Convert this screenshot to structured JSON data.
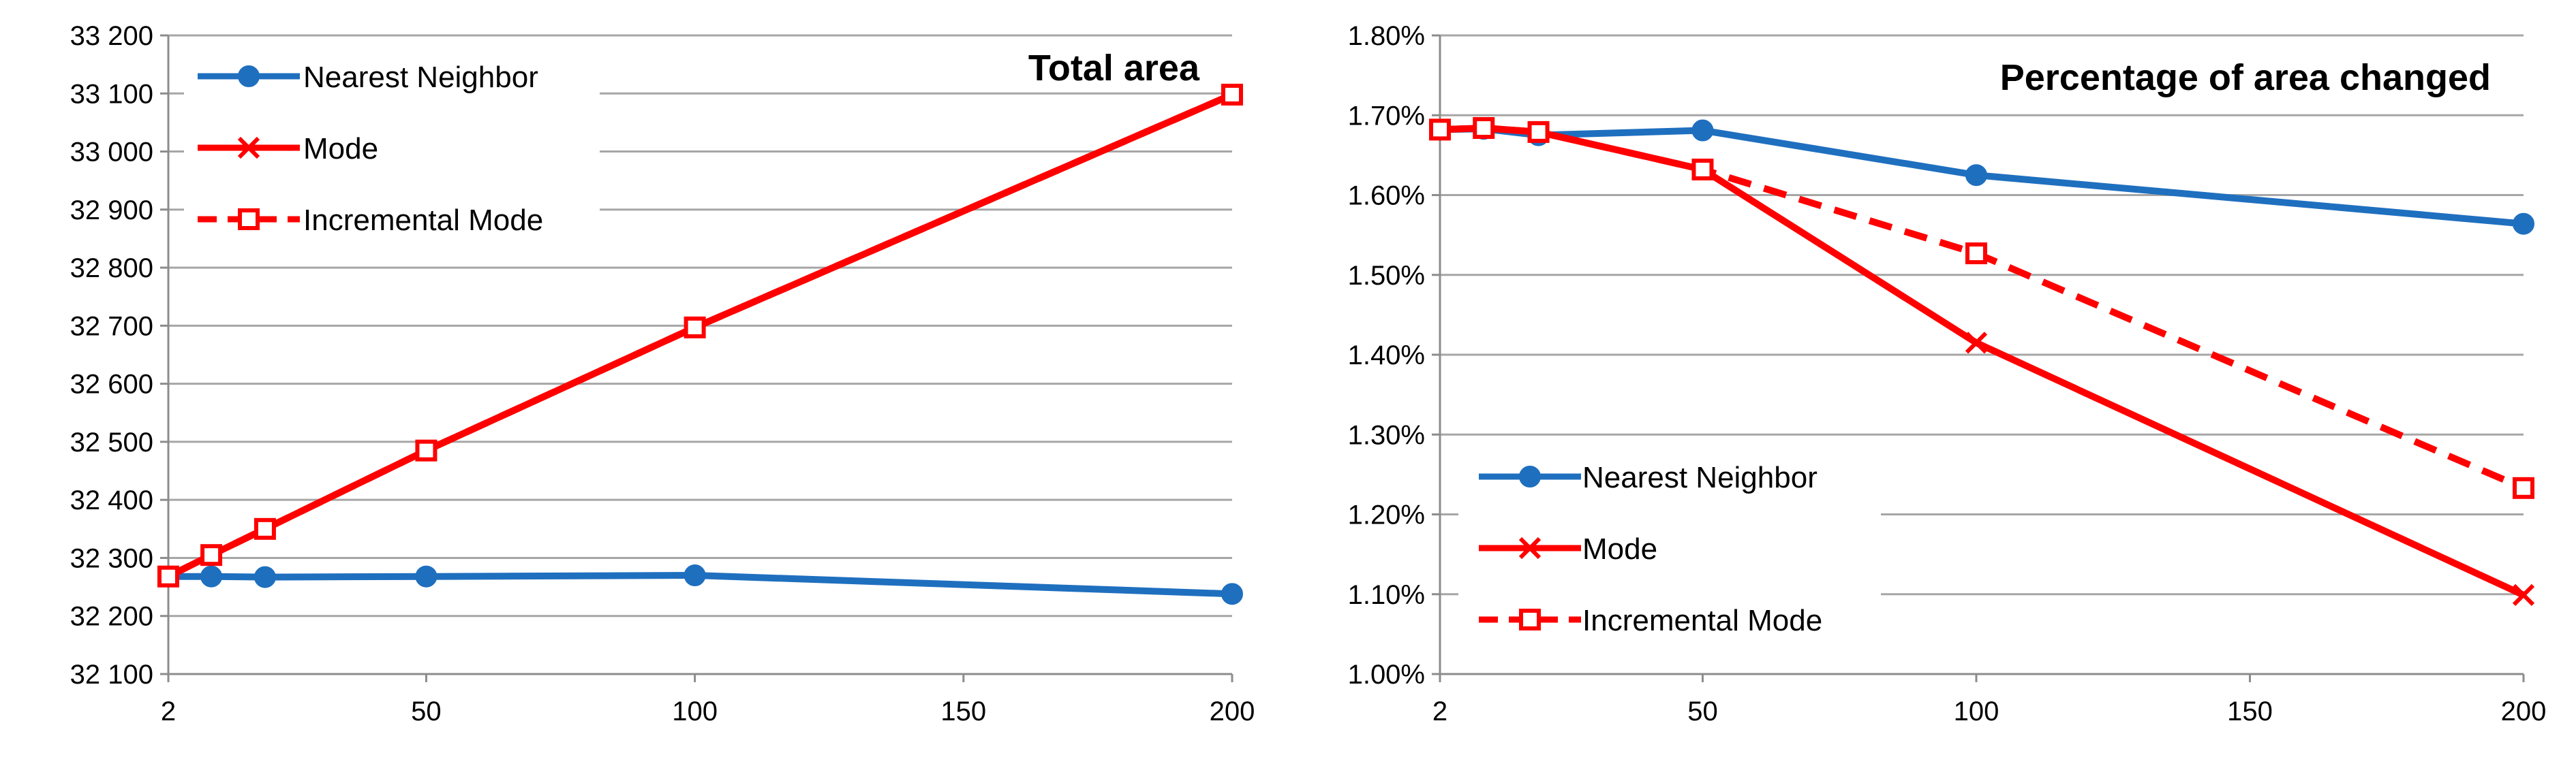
{
  "colors": {
    "nearest_neighbor": "#1f6fbf",
    "mode": "#ff0000",
    "incremental_mode": "#ff0000",
    "grid": "#a6a6a6"
  },
  "chart_data": [
    {
      "type": "line",
      "title": "Total area",
      "xlabel": "",
      "ylabel": "",
      "xlim": [
        2,
        200
      ],
      "ylim": [
        32100,
        33200
      ],
      "x_ticks": [
        2,
        50,
        100,
        150,
        200
      ],
      "x_tick_labels": [
        "2",
        "50",
        "100",
        "150",
        "200"
      ],
      "y_ticks": [
        32100,
        32200,
        32300,
        32400,
        32500,
        32600,
        32700,
        32800,
        32900,
        33000,
        33100,
        33200
      ],
      "y_tick_labels": [
        "32 100",
        "32 200",
        "32 300",
        "32 400",
        "32 500",
        "32 600",
        "32 700",
        "32 800",
        "32 900",
        "33 000",
        "33 100",
        "33 200"
      ],
      "grid": true,
      "legend_position": "top-left",
      "series": [
        {
          "name": "Nearest Neighbor",
          "color": "#1f6fbf",
          "marker": "circle",
          "dash": "solid",
          "x": [
            2,
            10,
            20,
            50,
            100,
            200
          ],
          "y": [
            32268,
            32268,
            32267,
            32268,
            32270,
            32238
          ]
        },
        {
          "name": "Mode",
          "color": "#ff0000",
          "marker": "x",
          "dash": "solid",
          "x": [
            2,
            10,
            20,
            50,
            100,
            200
          ],
          "y": [
            32268,
            32305,
            32350,
            32485,
            32697,
            33098
          ]
        },
        {
          "name": "Incremental Mode",
          "color": "#ff0000",
          "marker": "square",
          "dash": "dashed",
          "x": [
            2,
            10,
            20,
            50,
            100,
            200
          ],
          "y": [
            32268,
            32305,
            32350,
            32485,
            32697,
            33098
          ]
        }
      ]
    },
    {
      "type": "line",
      "title": "Percentage of area changed",
      "xlabel": "",
      "ylabel": "",
      "xlim": [
        2,
        200
      ],
      "ylim": [
        0.01,
        0.018
      ],
      "x_ticks": [
        2,
        50,
        100,
        150,
        200
      ],
      "x_tick_labels": [
        "2",
        "50",
        "100",
        "150",
        "200"
      ],
      "y_ticks": [
        0.01,
        0.011,
        0.012,
        0.013,
        0.014,
        0.015,
        0.016,
        0.017,
        0.018
      ],
      "y_tick_labels": [
        "1.00%",
        "1.10%",
        "1.20%",
        "1.30%",
        "1.40%",
        "1.50%",
        "1.60%",
        "1.70%",
        "1.80%"
      ],
      "grid": true,
      "legend_position": "bottom-left",
      "series": [
        {
          "name": "Nearest Neighbor",
          "color": "#1f6fbf",
          "marker": "circle",
          "dash": "solid",
          "x": [
            2,
            10,
            20,
            50,
            100,
            200
          ],
          "y": [
            0.01682,
            0.01683,
            0.01675,
            0.01681,
            0.01625,
            0.01564
          ]
        },
        {
          "name": "Mode",
          "color": "#ff0000",
          "marker": "x",
          "dash": "solid",
          "x": [
            2,
            10,
            20,
            50,
            100,
            200
          ],
          "y": [
            0.01682,
            0.01684,
            0.01679,
            0.01632,
            0.01415,
            0.01099
          ]
        },
        {
          "name": "Incremental Mode",
          "color": "#ff0000",
          "marker": "square",
          "dash": "dashed",
          "x": [
            2,
            10,
            20,
            50,
            100,
            200
          ],
          "y": [
            0.01682,
            0.01684,
            0.01679,
            0.01632,
            0.01527,
            0.01233
          ]
        }
      ]
    }
  ]
}
